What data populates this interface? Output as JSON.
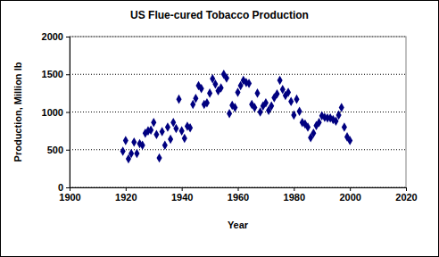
{
  "chart_data": {
    "type": "scatter",
    "title": "US Flue-cured Tobacco Production",
    "xlabel": "Year",
    "ylabel": "Production, Million lb",
    "x": [
      1919,
      1920,
      1921,
      1922,
      1923,
      1924,
      1925,
      1926,
      1927,
      1928,
      1929,
      1930,
      1931,
      1932,
      1933,
      1934,
      1935,
      1936,
      1937,
      1938,
      1939,
      1940,
      1941,
      1942,
      1943,
      1944,
      1945,
      1946,
      1947,
      1948,
      1949,
      1950,
      1951,
      1952,
      1953,
      1954,
      1955,
      1956,
      1957,
      1958,
      1959,
      1960,
      1961,
      1962,
      1963,
      1964,
      1965,
      1966,
      1967,
      1968,
      1969,
      1970,
      1971,
      1972,
      1973,
      1974,
      1975,
      1976,
      1977,
      1978,
      1979,
      1980,
      1981,
      1982,
      1983,
      1984,
      1985,
      1986,
      1987,
      1988,
      1989,
      1990,
      1991,
      1992,
      1993,
      1994,
      1995,
      1996,
      1997,
      1998,
      1999,
      2000
    ],
    "values": [
      480,
      620,
      380,
      450,
      600,
      450,
      580,
      560,
      720,
      750,
      760,
      860,
      700,
      390,
      740,
      560,
      800,
      640,
      860,
      780,
      1170,
      750,
      650,
      810,
      790,
      1100,
      1180,
      1350,
      1310,
      1100,
      1120,
      1250,
      1440,
      1370,
      1280,
      1320,
      1500,
      1450,
      980,
      1090,
      1060,
      1260,
      1350,
      1420,
      1390,
      1380,
      1100,
      1060,
      1250,
      1000,
      1080,
      1120,
      1020,
      1080,
      1190,
      1240,
      1420,
      1300,
      1220,
      1260,
      1140,
      960,
      1170,
      1010,
      860,
      840,
      800,
      660,
      720,
      820,
      860,
      950,
      930,
      920,
      920,
      900,
      880,
      960,
      1060,
      800,
      670,
      620
    ],
    "color": "#000080",
    "marker": "diamond",
    "xlim": [
      1900,
      2020
    ],
    "xticks": [
      1900,
      1920,
      1940,
      1960,
      1980,
      2000,
      2020
    ],
    "ylim": [
      0,
      2000
    ],
    "yticks": [
      0,
      500,
      1000,
      1500,
      2000
    ],
    "grid": true
  }
}
